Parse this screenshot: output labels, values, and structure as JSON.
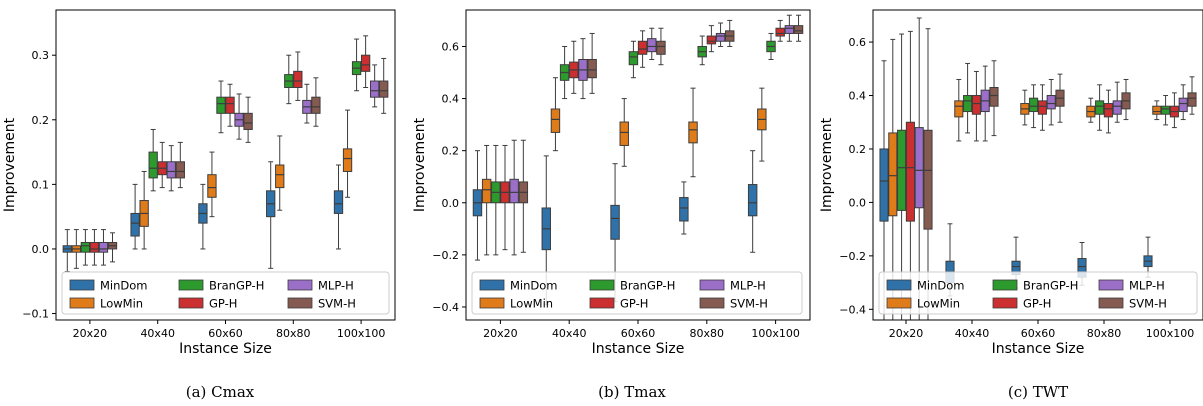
{
  "series": [
    {
      "name": "MinDom",
      "color": "#2f72a9"
    },
    {
      "name": "LowMin",
      "color": "#e07b1a"
    },
    {
      "name": "BranGP-H",
      "color": "#2c9a2c"
    },
    {
      "name": "GP-H",
      "color": "#cc2f2f"
    },
    {
      "name": "MLP-H",
      "color": "#9b6fc8"
    },
    {
      "name": "SVM-H",
      "color": "#855a50"
    }
  ],
  "chart_data": [
    {
      "type": "box",
      "caption": "(a) Cmax",
      "xlabel": "Instance Size",
      "ylabel": "Improvement",
      "categories": [
        "20x20",
        "40x40",
        "60x60",
        "80x80",
        "100x100"
      ],
      "ylim": [
        -0.11,
        0.37
      ],
      "yticks": [
        -0.1,
        0.0,
        0.1,
        0.2,
        0.3
      ],
      "ytick_labels": [
        "−0.1",
        "0.0",
        "0.1",
        "0.2",
        "0.3"
      ],
      "legend_position": "bottom",
      "boxes": {
        "MinDom": [
          [
            -0.035,
            -0.005,
            0.0,
            0.005,
            0.03
          ],
          [
            0.0,
            0.02,
            0.04,
            0.055,
            0.1
          ],
          [
            0.0,
            0.04,
            0.055,
            0.07,
            0.1
          ],
          [
            -0.03,
            0.05,
            0.07,
            0.09,
            0.135
          ],
          [
            0.0,
            0.055,
            0.07,
            0.09,
            0.13
          ]
        ],
        "LowMin": [
          [
            -0.03,
            -0.005,
            0.0,
            0.005,
            0.03
          ],
          [
            0.0,
            0.035,
            0.055,
            0.075,
            0.12
          ],
          [
            0.05,
            0.08,
            0.095,
            0.115,
            0.15
          ],
          [
            0.06,
            0.095,
            0.115,
            0.13,
            0.175
          ],
          [
            0.08,
            0.12,
            0.14,
            0.155,
            0.215
          ]
        ],
        "BranGP-H": [
          [
            -0.025,
            -0.005,
            0.005,
            0.01,
            0.03
          ],
          [
            0.09,
            0.11,
            0.125,
            0.15,
            0.185
          ],
          [
            0.18,
            0.21,
            0.225,
            0.235,
            0.26
          ],
          [
            0.225,
            0.25,
            0.26,
            0.27,
            0.3
          ],
          [
            0.245,
            0.27,
            0.28,
            0.29,
            0.325
          ]
        ],
        "GP-H": [
          [
            -0.025,
            -0.005,
            0.0,
            0.01,
            0.03
          ],
          [
            0.095,
            0.115,
            0.125,
            0.135,
            0.165
          ],
          [
            0.19,
            0.21,
            0.225,
            0.235,
            0.255
          ],
          [
            0.23,
            0.25,
            0.26,
            0.275,
            0.305
          ],
          [
            0.25,
            0.275,
            0.285,
            0.3,
            0.33
          ]
        ],
        "MLP-H": [
          [
            -0.025,
            -0.005,
            0.0,
            0.01,
            0.03
          ],
          [
            0.09,
            0.11,
            0.12,
            0.135,
            0.16
          ],
          [
            0.17,
            0.19,
            0.2,
            0.21,
            0.24
          ],
          [
            0.195,
            0.21,
            0.22,
            0.23,
            0.255
          ],
          [
            0.22,
            0.235,
            0.245,
            0.26,
            0.285
          ]
        ],
        "SVM-H": [
          [
            -0.02,
            0.0,
            0.005,
            0.01,
            0.025
          ],
          [
            0.095,
            0.11,
            0.12,
            0.135,
            0.165
          ],
          [
            0.165,
            0.185,
            0.195,
            0.21,
            0.235
          ],
          [
            0.19,
            0.21,
            0.22,
            0.235,
            0.265
          ],
          [
            0.21,
            0.235,
            0.245,
            0.26,
            0.295
          ]
        ]
      }
    },
    {
      "type": "box",
      "caption": "(b) Tmax",
      "xlabel": "Instance Size",
      "ylabel": "Improvement",
      "categories": [
        "20x20",
        "40x40",
        "60x60",
        "80x80",
        "100x100"
      ],
      "ylim": [
        -0.45,
        0.74
      ],
      "yticks": [
        -0.4,
        -0.2,
        0.0,
        0.2,
        0.4,
        0.6
      ],
      "ytick_labels": [
        "−0.4",
        "−0.2",
        "0.0",
        "0.2",
        "0.4",
        "0.6"
      ],
      "legend_position": "bottom",
      "boxes": {
        "MinDom": [
          [
            -0.22,
            -0.05,
            0.0,
            0.05,
            0.2
          ],
          [
            -0.39,
            -0.18,
            -0.1,
            -0.02,
            0.18
          ],
          [
            -0.38,
            -0.14,
            -0.06,
            -0.01,
            0.15
          ],
          [
            -0.12,
            -0.07,
            -0.02,
            0.02,
            0.08
          ],
          [
            -0.19,
            -0.05,
            0.0,
            0.07,
            0.2
          ]
        ],
        "LowMin": [
          [
            -0.2,
            0.0,
            0.05,
            0.09,
            0.22
          ],
          [
            0.2,
            0.27,
            0.32,
            0.36,
            0.48
          ],
          [
            0.14,
            0.22,
            0.27,
            0.31,
            0.4
          ],
          [
            0.1,
            0.23,
            0.28,
            0.31,
            0.44
          ],
          [
            0.16,
            0.28,
            0.32,
            0.36,
            0.44
          ]
        ],
        "BranGP-H": [
          [
            -0.2,
            0.0,
            0.04,
            0.08,
            0.22
          ],
          [
            0.4,
            0.47,
            0.5,
            0.53,
            0.6
          ],
          [
            0.48,
            0.53,
            0.56,
            0.58,
            0.62
          ],
          [
            0.53,
            0.56,
            0.58,
            0.6,
            0.64
          ],
          [
            0.55,
            0.58,
            0.6,
            0.62,
            0.65
          ]
        ],
        "GP-H": [
          [
            -0.18,
            0.0,
            0.04,
            0.08,
            0.22
          ],
          [
            0.42,
            0.48,
            0.51,
            0.54,
            0.62
          ],
          [
            0.52,
            0.57,
            0.59,
            0.62,
            0.66
          ],
          [
            0.58,
            0.61,
            0.62,
            0.64,
            0.68
          ],
          [
            0.62,
            0.64,
            0.65,
            0.67,
            0.7
          ]
        ],
        "MLP-H": [
          [
            -0.2,
            0.0,
            0.04,
            0.09,
            0.24
          ],
          [
            0.4,
            0.47,
            0.51,
            0.55,
            0.63
          ],
          [
            0.55,
            0.58,
            0.6,
            0.63,
            0.67
          ],
          [
            0.6,
            0.62,
            0.64,
            0.65,
            0.69
          ],
          [
            0.62,
            0.65,
            0.67,
            0.68,
            0.72
          ]
        ],
        "SVM-H": [
          [
            -0.19,
            0.0,
            0.04,
            0.08,
            0.24
          ],
          [
            0.42,
            0.48,
            0.51,
            0.55,
            0.65
          ],
          [
            0.53,
            0.57,
            0.6,
            0.62,
            0.67
          ],
          [
            0.6,
            0.62,
            0.64,
            0.66,
            0.7
          ],
          [
            0.62,
            0.65,
            0.66,
            0.68,
            0.72
          ]
        ]
      }
    },
    {
      "type": "box",
      "caption": "(c) TWT",
      "xlabel": "Instance Size",
      "ylabel": "Improvement",
      "categories": [
        "20x20",
        "40x40",
        "60x60",
        "80x80",
        "100x100"
      ],
      "ylim": [
        -0.44,
        0.72
      ],
      "yticks": [
        -0.4,
        -0.2,
        0.0,
        0.2,
        0.4,
        0.6
      ],
      "ytick_labels": [
        "−0.4",
        "−0.2",
        "0.0",
        "0.2",
        "0.4",
        "0.6"
      ],
      "legend_position": "bottom",
      "boxes": {
        "MinDom": [
          [
            -0.45,
            -0.07,
            0.08,
            0.2,
            0.53
          ],
          [
            -0.35,
            -0.3,
            -0.26,
            -0.22,
            -0.08
          ],
          [
            -0.32,
            -0.27,
            -0.24,
            -0.22,
            -0.13
          ],
          [
            -0.31,
            -0.28,
            -0.24,
            -0.21,
            -0.15
          ],
          [
            -0.28,
            -0.24,
            -0.22,
            -0.2,
            -0.13
          ]
        ],
        "LowMin": [
          [
            -0.44,
            -0.05,
            0.1,
            0.26,
            0.61
          ],
          [
            0.23,
            0.32,
            0.36,
            0.38,
            0.46
          ],
          [
            0.29,
            0.33,
            0.35,
            0.37,
            0.42
          ],
          [
            0.3,
            0.32,
            0.34,
            0.36,
            0.39
          ],
          [
            0.31,
            0.33,
            0.34,
            0.36,
            0.38
          ]
        ],
        "BranGP-H": [
          [
            -0.44,
            -0.03,
            0.13,
            0.27,
            0.63
          ],
          [
            0.26,
            0.34,
            0.38,
            0.4,
            0.52
          ],
          [
            0.28,
            0.34,
            0.36,
            0.39,
            0.44
          ],
          [
            0.27,
            0.33,
            0.36,
            0.38,
            0.44
          ],
          [
            0.29,
            0.33,
            0.35,
            0.36,
            0.4
          ]
        ],
        "GP-H": [
          [
            -0.44,
            -0.07,
            0.13,
            0.3,
            0.64
          ],
          [
            0.23,
            0.33,
            0.37,
            0.4,
            0.49
          ],
          [
            0.27,
            0.33,
            0.36,
            0.38,
            0.44
          ],
          [
            0.26,
            0.32,
            0.35,
            0.37,
            0.42
          ],
          [
            0.28,
            0.32,
            0.34,
            0.36,
            0.41
          ]
        ],
        "MLP-H": [
          [
            -0.44,
            -0.02,
            0.12,
            0.28,
            0.69
          ],
          [
            0.23,
            0.34,
            0.38,
            0.42,
            0.51
          ],
          [
            0.29,
            0.35,
            0.37,
            0.4,
            0.46
          ],
          [
            0.3,
            0.33,
            0.36,
            0.38,
            0.45
          ],
          [
            0.31,
            0.34,
            0.37,
            0.39,
            0.44
          ]
        ],
        "SVM-H": [
          [
            -0.44,
            -0.1,
            0.12,
            0.27,
            0.65
          ],
          [
            0.25,
            0.36,
            0.4,
            0.43,
            0.53
          ],
          [
            0.3,
            0.36,
            0.39,
            0.42,
            0.48
          ],
          [
            0.31,
            0.35,
            0.38,
            0.41,
            0.46
          ],
          [
            0.33,
            0.36,
            0.39,
            0.41,
            0.47
          ]
        ]
      }
    }
  ]
}
